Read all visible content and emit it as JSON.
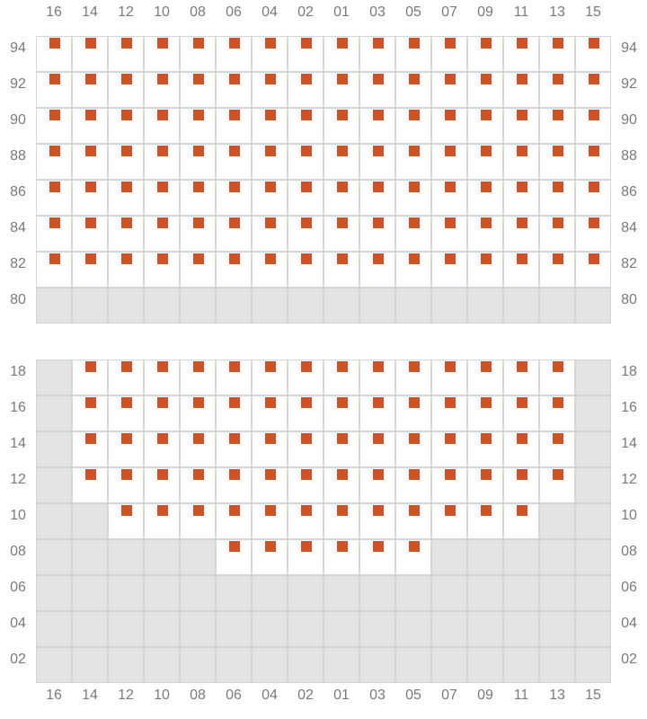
{
  "colors": {
    "marker": "#cc5229",
    "blocked": "#e3e3e6",
    "grid_line": "#d4d4d8"
  },
  "legend_codes": {
    "x": "marked",
    "o": "open",
    "-": "unavailable"
  },
  "columns": [
    "16",
    "14",
    "12",
    "10",
    "08",
    "06",
    "04",
    "02",
    "01",
    "03",
    "05",
    "07",
    "09",
    "11",
    "13",
    "15"
  ],
  "top_section": {
    "rows": [
      {
        "label": "94",
        "cells": "xxxxxxxxxxxxxxxx"
      },
      {
        "label": "92",
        "cells": "xxxxxxxxxxxxxxxx"
      },
      {
        "label": "90",
        "cells": "xxxxxxxxxxxxxxxx"
      },
      {
        "label": "88",
        "cells": "xxxxxxxxxxxxxxxx"
      },
      {
        "label": "86",
        "cells": "xxxxxxxxxxxxxxxx"
      },
      {
        "label": "84",
        "cells": "xxxxxxxxxxxxxxxx"
      },
      {
        "label": "82",
        "cells": "xxxxxxxxxxxxxxxx"
      },
      {
        "label": "80",
        "cells": "----------------"
      }
    ]
  },
  "bottom_section": {
    "rows": [
      {
        "label": "18",
        "cells": "-xxxxxxxxxxxxxx-"
      },
      {
        "label": "16",
        "cells": "-xxxxxxxxxxxxxx-"
      },
      {
        "label": "14",
        "cells": "-xxxxxxxxxxxxxx-"
      },
      {
        "label": "12",
        "cells": "-xxxxxxxxxxxxxx-"
      },
      {
        "label": "10",
        "cells": "--xxxxxxxxxxxx--"
      },
      {
        "label": "08",
        "cells": "-----xxxxxx-----"
      },
      {
        "label": "06",
        "cells": "----------------"
      },
      {
        "label": "04",
        "cells": "----------------"
      },
      {
        "label": "02",
        "cells": "----------------"
      }
    ]
  }
}
